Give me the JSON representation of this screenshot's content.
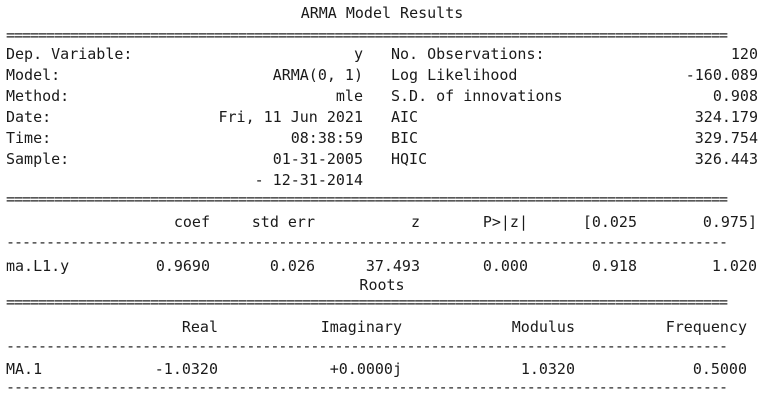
{
  "title": "ARMA Model Results",
  "summary": {
    "left": [
      {
        "label": "Dep. Variable:",
        "value": "y"
      },
      {
        "label": "Model:",
        "value": "ARMA(0, 1)"
      },
      {
        "label": "Method:",
        "value": "mle"
      },
      {
        "label": "Date:",
        "value": "Fri, 11 Jun 2021"
      },
      {
        "label": "Time:",
        "value": "08:38:59"
      },
      {
        "label": "Sample:",
        "value": "01-31-2005"
      },
      {
        "label": "",
        "value": "- 12-31-2014"
      }
    ],
    "right": [
      {
        "label": "No. Observations:",
        "value": "120"
      },
      {
        "label": "Log Likelihood",
        "value": "-160.089"
      },
      {
        "label": "S.D. of innovations",
        "value": "0.908"
      },
      {
        "label": "AIC",
        "value": "324.179"
      },
      {
        "label": "BIC",
        "value": "329.754"
      },
      {
        "label": "HQIC",
        "value": "326.443"
      }
    ]
  },
  "coef_table": {
    "headers": [
      "coef",
      "std err",
      "z",
      "P>|z|",
      "[0.025",
      "0.975]"
    ],
    "rows": [
      {
        "name": "ma.L1.y",
        "values": [
          "0.9690",
          "0.026",
          "37.493",
          "0.000",
          "0.918",
          "1.020"
        ]
      }
    ]
  },
  "roots": {
    "title": "Roots",
    "headers": [
      "Real",
      "Imaginary",
      "Modulus",
      "Frequency"
    ],
    "rows": [
      {
        "name": "MA.1",
        "values": [
          "-1.0320",
          "+0.0000j",
          "1.0320",
          "0.5000"
        ]
      }
    ]
  }
}
